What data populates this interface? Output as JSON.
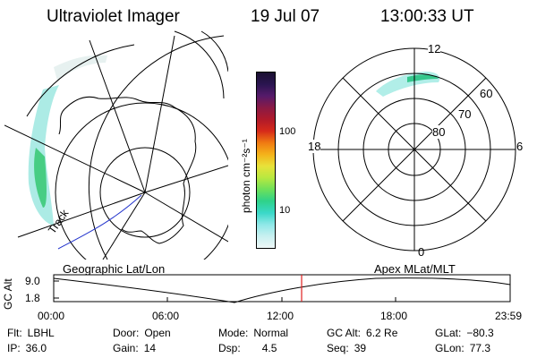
{
  "header": {
    "instrument": "Ultraviolet Imager",
    "date": "19 Jul 07",
    "time": "13:00:33 UT"
  },
  "colorbar": {
    "unit_label": "photon cm⁻²s⁻¹",
    "ticks": [
      "100",
      "10"
    ],
    "colors": [
      "#1a1030",
      "#2a1550",
      "#551a6a",
      "#8a1a45",
      "#b01a2a",
      "#d62a1a",
      "#f07a12",
      "#f4b21a",
      "#e8e23a",
      "#b8e840",
      "#6ee05a",
      "#2ed28a",
      "#3ad8c8",
      "#8fe8e8",
      "#c8f0f0",
      "#eef7f7"
    ]
  },
  "left_panel": {
    "track_label": "Track",
    "caption": "Geographic Lat/Lon"
  },
  "right_panel": {
    "caption": "Apex MLat/MLT",
    "mlt_labels": {
      "top": "12",
      "left": "18",
      "right": "6",
      "bottom": "0"
    },
    "lat_labels": [
      "60",
      "70",
      "80"
    ]
  },
  "altitude_plot": {
    "axis_label": "GC Alt",
    "y_ticks": [
      "9.0",
      "1.8"
    ],
    "x_ticks": [
      "00:00",
      "06:00",
      "12:00",
      "18:00",
      "23:59"
    ],
    "current_time_color": "#e02020"
  },
  "info": {
    "flt": {
      "label": "Flt:",
      "value": "LBHL"
    },
    "ip": {
      "label": "IP:",
      "value": "36.0"
    },
    "door": {
      "label": "Door:",
      "value": "Open"
    },
    "gain": {
      "label": "Gain:",
      "value": "14"
    },
    "mode": {
      "label": "Mode:",
      "value": "Normal"
    },
    "dsp": {
      "label": "Dsp:",
      "value": "4.5"
    },
    "gc_alt": {
      "label": "GC Alt:",
      "value": "6.2 Re"
    },
    "seq": {
      "label": "Seq:",
      "value": "39"
    },
    "glat": {
      "label": "GLat:",
      "value": "−80.3"
    },
    "glon": {
      "label": "GLon:",
      "value": "77.3"
    }
  }
}
